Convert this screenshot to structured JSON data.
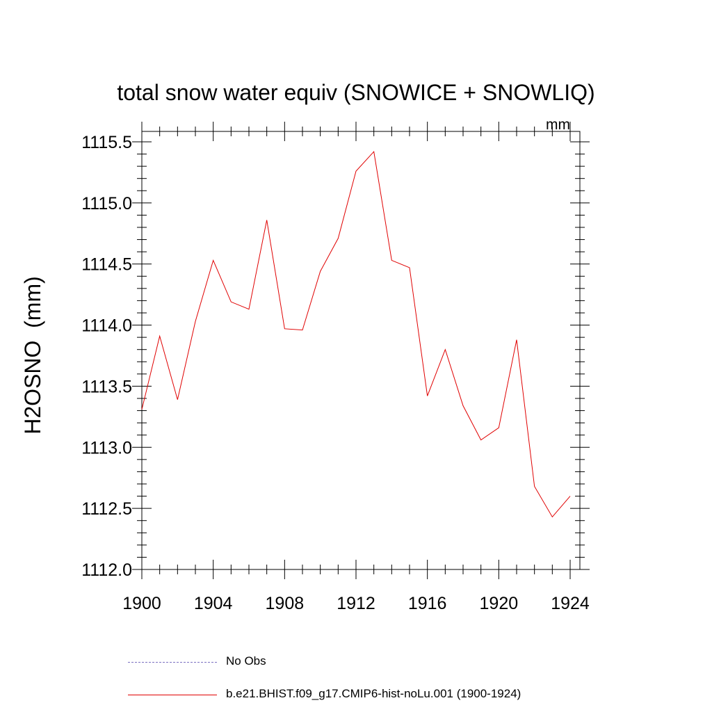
{
  "chart_data": {
    "type": "line",
    "title": "total snow water equiv (SNOWICE + SNOWLIQ)",
    "units": "mm",
    "ylabel": "H2OSNO  (mm)",
    "xlabel": "",
    "xlim": [
      1900,
      1924
    ],
    "ylim": [
      1112.0,
      1115.6
    ],
    "xticks": [
      "1900",
      "1904",
      "1908",
      "1912",
      "1916",
      "1920",
      "1924"
    ],
    "yticks": [
      "1112.0",
      "1112.5",
      "1113.0",
      "1113.5",
      "1114.0",
      "1114.5",
      "1115.0",
      "1115.5"
    ],
    "x": [
      1900,
      1901,
      1902,
      1903,
      1904,
      1905,
      1906,
      1907,
      1908,
      1909,
      1910,
      1911,
      1912,
      1913,
      1914,
      1915,
      1916,
      1917,
      1918,
      1919,
      1920,
      1921,
      1922,
      1923,
      1924
    ],
    "series": [
      {
        "name": "b.e21.BHIST.f09_g17.CMIP6-hist-noLu.001 (1900-1924)",
        "color": "#e00000",
        "values": [
          1113.31,
          1113.91,
          1113.39,
          1114.03,
          1114.53,
          1114.19,
          1114.13,
          1114.86,
          1113.97,
          1113.96,
          1114.44,
          1114.71,
          1115.26,
          1115.42,
          1114.53,
          1114.47,
          1113.42,
          1113.8,
          1113.34,
          1113.06,
          1113.16,
          1113.88,
          1112.68,
          1112.43,
          1112.6
        ]
      }
    ],
    "grid": false,
    "legend_position": "bottom"
  },
  "legend": [
    {
      "label": "No Obs",
      "style": "dashed",
      "color": "#7a6fc0"
    },
    {
      "label": "b.e21.BHIST.f09_g17.CMIP6-hist-noLu.001 (1900-1924)",
      "style": "solid",
      "color": "#e00000"
    }
  ]
}
